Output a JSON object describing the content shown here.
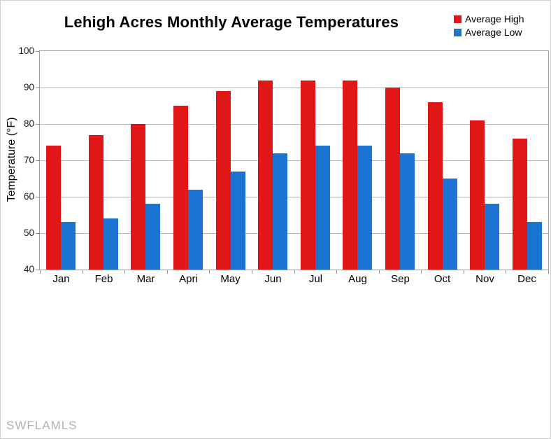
{
  "title": "Lehigh Acres Monthly Average Temperatures",
  "watermark": "SWFLAMLS",
  "legend": [
    {
      "label": "Average High",
      "color": "#e11616"
    },
    {
      "label": "Average Low",
      "color": "#1c74d2"
    }
  ],
  "chart_data": {
    "type": "bar",
    "title": "Lehigh Acres Monthly Average Temperatures",
    "categories": [
      "Jan",
      "Feb",
      "Mar",
      "Apri",
      "May",
      "Jun",
      "Jul",
      "Aug",
      "Sep",
      "Oct",
      "Nov",
      "Dec"
    ],
    "series": [
      {
        "name": "Average High",
        "color": "#e11616",
        "values": [
          74,
          77,
          80,
          85,
          89,
          92,
          92,
          92,
          90,
          86,
          81,
          76
        ]
      },
      {
        "name": "Average Low",
        "color": "#1c74d2",
        "values": [
          53,
          54,
          58,
          62,
          67,
          72,
          74,
          74,
          72,
          65,
          58,
          53
        ]
      }
    ],
    "xlabel": "",
    "ylabel": "Temperature (°F)",
    "ylim": [
      40,
      100
    ],
    "ytick_step": 10,
    "grid": true,
    "grid_color": "#b4b4b4",
    "legend_position": "top-right",
    "background": "#ffffff"
  }
}
